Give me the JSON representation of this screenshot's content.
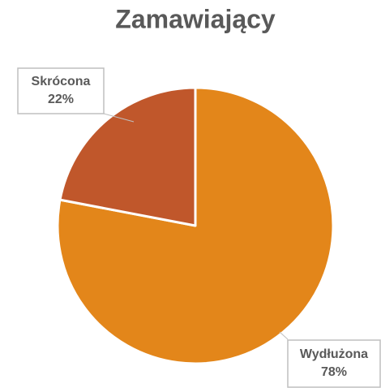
{
  "chart_data": {
    "type": "pie",
    "title": "Zamawiający",
    "categories": [
      "Wydłużona",
      "Skrócona"
    ],
    "values": [
      78,
      22
    ],
    "value_labels": [
      "78%",
      "22%"
    ],
    "colors": [
      "#e3861a",
      "#c0572b"
    ]
  }
}
